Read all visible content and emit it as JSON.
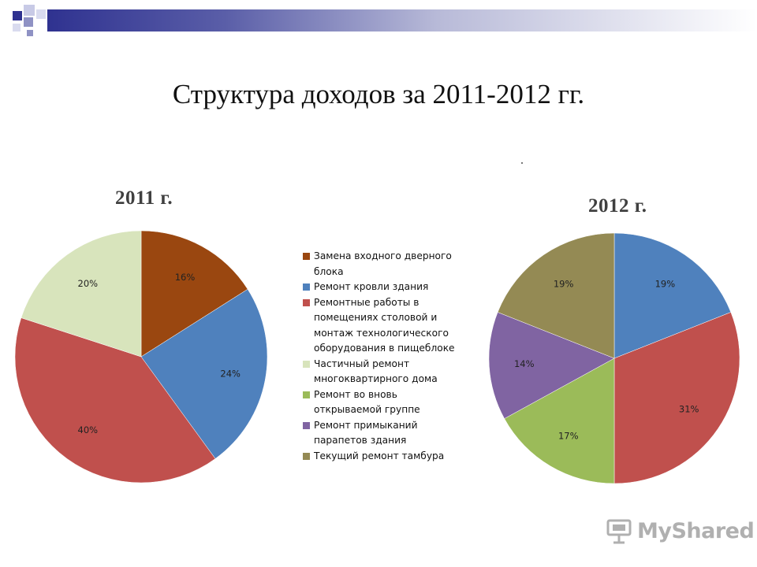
{
  "slide": {
    "title": "Структура  доходов за 2011-2012 гг.",
    "watermark": "MyShared",
    "colors": {
      "accent_dark": "#2f3290",
      "accent_light": "#8f92c4"
    }
  },
  "chart_data": [
    {
      "type": "pie",
      "title": "2011 г.",
      "legend_position": "right",
      "slices": [
        {
          "label": "Замена входного дверного блока",
          "value": 16,
          "display": "16%",
          "color": "#9a4710"
        },
        {
          "label": "Ремонт кровли здания",
          "value": 24,
          "display": "24%",
          "color": "#4f81bd"
        },
        {
          "label": "Ремонтные работы в помещениях столовой и монтаж технологического оборудования в пищеблоке",
          "value": 40,
          "display": "40%",
          "color": "#c0504d"
        },
        {
          "label": "Частичный ремонт многоквартирного дома",
          "value": 20,
          "display": "20%",
          "color": "#d8e4bc"
        }
      ]
    },
    {
      "type": "pie",
      "title": "2012 г.",
      "legend_position": "left",
      "slices": [
        {
          "label": "Ремонт кровли здания",
          "value": 19,
          "display": "19%",
          "color": "#4f81bd"
        },
        {
          "label": "Ремонтные работы в помещениях столовой и монтаж технологического оборудования в пищеблоке",
          "value": 31,
          "display": "31%",
          "color": "#c0504d"
        },
        {
          "label": "Ремонт во вновь открываемой группе",
          "value": 17,
          "display": "17%",
          "color": "#9bbb59"
        },
        {
          "label": "Ремонт примыканий парапетов здания",
          "value": 14,
          "display": "14%",
          "color": "#8064a2"
        },
        {
          "label": "Текущий ремонт тамбура",
          "value": 19,
          "display": "19%",
          "color": "#948a54"
        }
      ]
    }
  ],
  "legend": {
    "items": [
      {
        "lines": [
          "Замена входного дверного",
          "блока"
        ],
        "color": "#9a4710"
      },
      {
        "lines": [
          "Ремонт кровли здания"
        ],
        "color": "#4f81bd"
      },
      {
        "lines": [
          "Ремонтные работы в",
          "помещениях столовой и",
          "монтаж технологического",
          "оборудования в пищеблоке"
        ],
        "color": "#c0504d"
      },
      {
        "lines": [
          "Частичный ремонт",
          "многоквартирного дома"
        ],
        "color": "#d8e4bc"
      },
      {
        "lines": [
          "Ремонт во вновь",
          "открываемой группе"
        ],
        "color": "#9bbb59"
      },
      {
        "lines": [
          "Ремонт примыканий",
          "парапетов здания"
        ],
        "color": "#8064a2"
      },
      {
        "lines": [
          "Текущий ремонт тамбура"
        ],
        "color": "#948a54"
      }
    ]
  }
}
